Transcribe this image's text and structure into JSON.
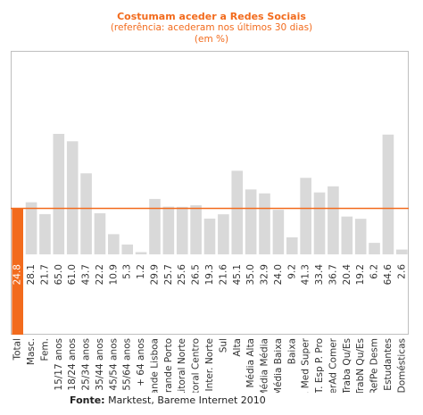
{
  "chart_data": {
    "type": "bar",
    "title": "Costumam aceder a Redes Sociais",
    "subtitle": "(referência: acederam nos últimos 30 dias)",
    "unit_note": "(em %)",
    "categories": [
      "Total",
      "Masc.",
      "Fem.",
      "15/17 anos",
      "18/24 anos",
      "25/34 anos",
      "35/44 anos",
      "45/54 anos",
      "55/64 anos",
      "+ 64 anos",
      "Grande Lisboa",
      "Grande Porto",
      "Litoral Norte",
      "Litoral Centro",
      "Inter. Norte",
      "Sul",
      "Alta",
      "Média Alta",
      "Média Média",
      "Média Baixa",
      "Baixa",
      "Q. Med Super",
      "T. Esp P. Pro",
      "SerAd Comer",
      "Traba Qu/Es",
      "TrabN Qu/Es",
      "RefPe Desm",
      "Estudantes",
      "Domésticas"
    ],
    "value_labels": [
      "24.8",
      "28.1",
      "21.7",
      "65.0",
      "61.0",
      "43.7",
      "22.2",
      "10.9",
      "5.3",
      "1.2",
      "29.9",
      "25.7",
      "25.6",
      "26.5",
      "19.3",
      "21.6",
      "45.1",
      "35.0",
      "32.9",
      "24.0",
      "9.2",
      "41.3",
      "33.4",
      "36.7",
      "20.4",
      "19.2",
      "6.2",
      "64.6",
      "2.6"
    ],
    "values": [
      24.8,
      28.1,
      21.7,
      65.0,
      61.0,
      43.7,
      22.2,
      10.9,
      5.3,
      1.2,
      29.9,
      25.7,
      25.6,
      26.5,
      19.3,
      21.6,
      45.1,
      35.0,
      32.9,
      24.0,
      9.2,
      41.3,
      33.4,
      36.7,
      20.4,
      19.2,
      6.2,
      64.6,
      2.6
    ],
    "reference_line": 24.8,
    "highlight_index": 0,
    "ylim": [
      0,
      80
    ],
    "grid": false,
    "colors": {
      "bar": "#d9d9d9",
      "highlight": "#f26b1d",
      "reference_line": "#f26b1d",
      "title": "#f26b1d",
      "text": "#333333"
    }
  },
  "footer": {
    "source_label": "Fonte:",
    "source_text": " Marktest, Bareme Internet 2010"
  }
}
